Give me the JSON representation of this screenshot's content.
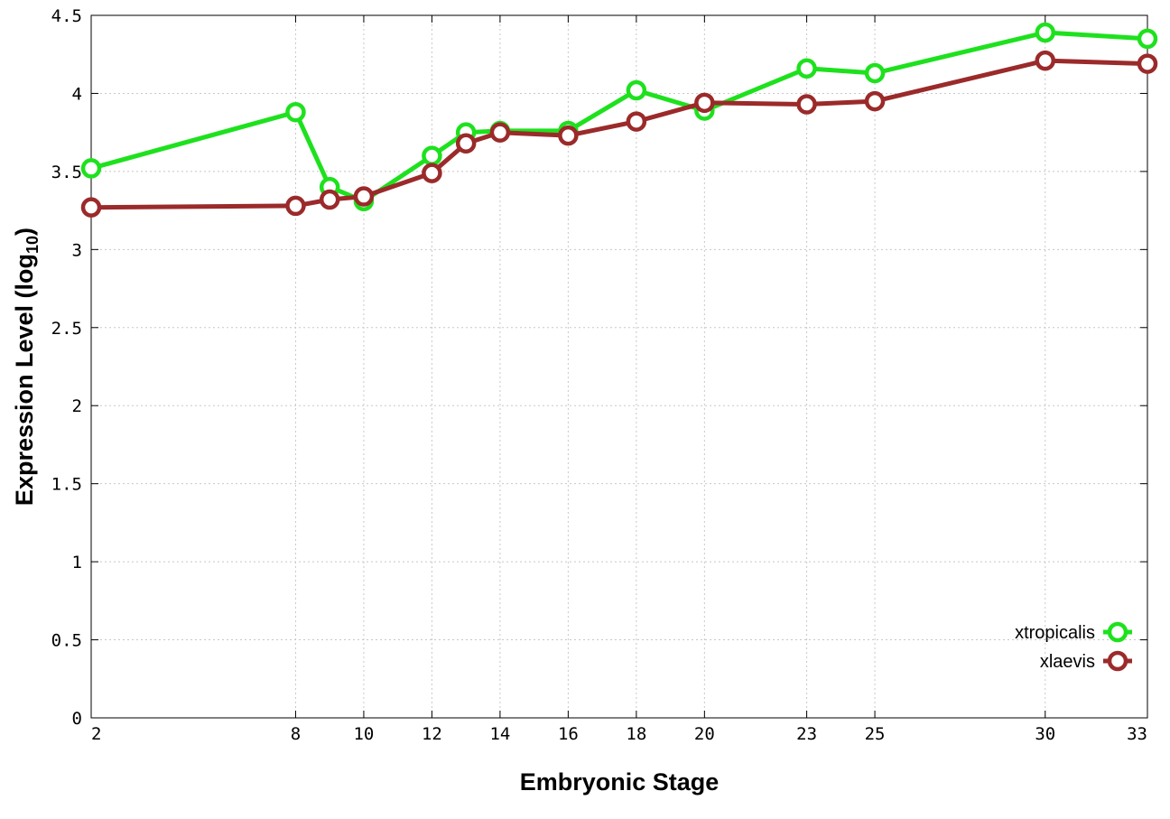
{
  "chart_data": {
    "type": "line",
    "xlabel": "Embryonic Stage",
    "ylabel": "Expression Level (log",
    "ylabel_sub": "10",
    "ylabel_suffix": ")",
    "xlim": [
      2,
      33
    ],
    "ylim": [
      0,
      4.5
    ],
    "grid": true,
    "legend_position": "bottom-right",
    "x_ticks": [
      2,
      8,
      10,
      12,
      14,
      16,
      18,
      20,
      23,
      25,
      30,
      33
    ],
    "x_tick_labels": [
      "2",
      "8",
      "10",
      "12",
      "14",
      "16",
      "18",
      "20",
      "23",
      "25",
      "30",
      "33"
    ],
    "y_ticks": [
      0,
      0.5,
      1,
      1.5,
      2,
      2.5,
      3,
      3.5,
      4,
      4.5
    ],
    "y_tick_labels": [
      "0",
      "0.5",
      "1",
      "1.5",
      "2",
      "2.5",
      "3",
      "3.5",
      "4",
      "4.5"
    ],
    "x": [
      2,
      8,
      9,
      10,
      12,
      13,
      14,
      16,
      18,
      20,
      23,
      25,
      30,
      33
    ],
    "series": [
      {
        "name": "xtropicalis",
        "color": "#1ee11e",
        "values": [
          3.52,
          3.88,
          3.4,
          3.31,
          3.6,
          3.75,
          3.76,
          3.76,
          4.02,
          3.89,
          4.16,
          4.13,
          4.39,
          4.35
        ]
      },
      {
        "name": "xlaevis",
        "color": "#9b2a2a",
        "values": [
          3.27,
          3.28,
          3.32,
          3.34,
          3.49,
          3.68,
          3.75,
          3.73,
          3.82,
          3.94,
          3.93,
          3.95,
          4.21,
          4.19
        ]
      }
    ]
  }
}
